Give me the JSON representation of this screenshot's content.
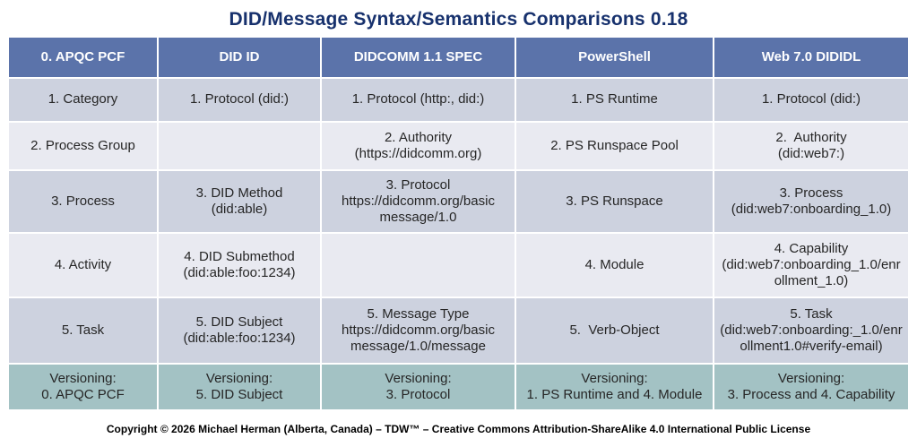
{
  "title": "DID/Message Syntax/Semantics Comparisons 0.18",
  "table": {
    "columns": [
      "0. APQC PCF",
      "DID ID",
      "DIDCOMM 1.1 SPEC",
      "PowerShell",
      "Web 7.0 DIDIDL"
    ],
    "rows": [
      {
        "cells": [
          "1. Category",
          "1. Protocol (did:)",
          "1. Protocol (http:, did:)",
          "1. PS Runtime",
          "1. Protocol (did:)"
        ]
      },
      {
        "cells": [
          "2. Process Group",
          "",
          "2. Authority\n(https://didcomm.org)",
          "2. PS Runspace Pool",
          "2.  Authority\n(did:web7:)"
        ]
      },
      {
        "cells": [
          "3. Process",
          "3. DID Method\n(did:able)",
          "3. Protocol\nhttps://didcomm.org/basic\nmessage/1.0",
          "3. PS Runspace",
          "3. Process\n(did:web7:onboarding_1.0)"
        ]
      },
      {
        "cells": [
          "4. Activity",
          "4. DID Submethod\n(did:able:foo:1234)",
          "",
          "4. Module",
          "4. Capability\n(did:web7:onboarding_1.0/enr\nollment_1.0)"
        ]
      },
      {
        "cells": [
          "5. Task",
          "5. DID Subject\n(did:able:foo:1234)",
          "5. Message Type\nhttps://didcomm.org/basic\nmessage/1.0/message",
          "5.  Verb-Object",
          "5. Task\n(did:web7:onboarding:_1.0/enr\nollment1.0#verify-email)"
        ]
      },
      {
        "cells": [
          "Versioning:\n0. APQC PCF",
          "Versioning:\n5. DID Subject",
          "Versioning:\n3. Protocol",
          "Versioning:\n1. PS Runtime and 4. Module",
          "Versioning:\n3. Process and 4. Capability"
        ]
      }
    ]
  },
  "footer": "Copyright © 2026 Michael Herman (Alberta, Canada) – TDW™ – Creative Commons Attribution-ShareAlike 4.0 International Public License",
  "colors": {
    "title": "#17316D",
    "header_bg": "#5B73AA",
    "header_text": "#FFFFFF",
    "row_dark_bg": "#CDD2DF",
    "row_light_bg": "#E9EAF1",
    "versioning_bg": "#A3C2C4",
    "cell_text": "#262626"
  }
}
